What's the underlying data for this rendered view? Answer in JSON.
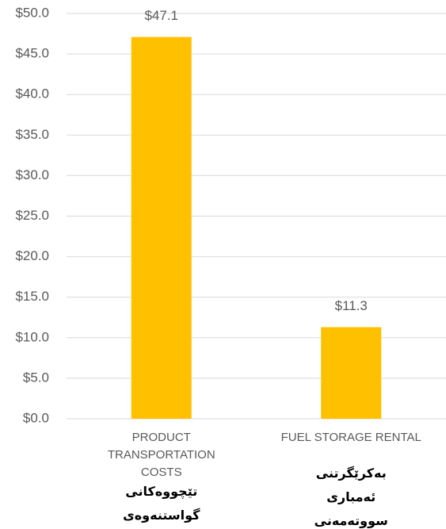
{
  "chart_data": {
    "type": "bar",
    "categories": [
      "PRODUCT TRANSPORTATION COSTS",
      "FUEL STORAGE RENTAL"
    ],
    "annotations": [
      "تێچووەکانی گواستنەوەی بەرهەمەکان",
      "بەکرێگرتنی ئەمباری سووتەمەنی"
    ],
    "values": [
      47.1,
      11.3
    ],
    "value_labels": [
      "$47.1",
      "$11.3"
    ],
    "color": "#ffc000",
    "ylim": [
      0,
      50
    ],
    "yticks": [
      {
        "value": 0,
        "label": "$0.0"
      },
      {
        "value": 5,
        "label": "$5.0"
      },
      {
        "value": 10,
        "label": "$10.0"
      },
      {
        "value": 15,
        "label": "$15.0"
      },
      {
        "value": 20,
        "label": "$20.0"
      },
      {
        "value": 25,
        "label": "$25.0"
      },
      {
        "value": 30,
        "label": "$30.0"
      },
      {
        "value": 35,
        "label": "$35.0"
      },
      {
        "value": 40,
        "label": "$40.0"
      },
      {
        "value": 45,
        "label": "$45.0"
      },
      {
        "value": 50,
        "label": "$50.0"
      }
    ],
    "grid": true
  }
}
